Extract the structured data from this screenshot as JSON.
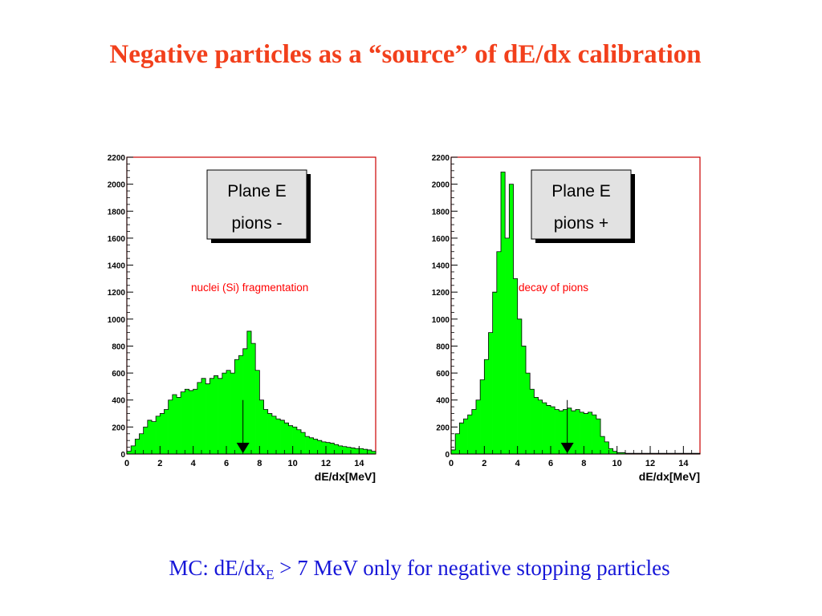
{
  "slide": {
    "title": "Negative particles as a  “source” of dE/dx calibration",
    "caption": {
      "prefix": "MC: dE/dx",
      "subscript": "E",
      "middle": " > ",
      "suffix": "7 MeV only for negative stopping particles"
    }
  },
  "colors": {
    "title": "#f2401c",
    "caption": "#1616d8",
    "fill": "#00ff00",
    "frame": "#cc0000",
    "annotation": "#ff0000"
  },
  "chart_data": [
    {
      "type": "bar",
      "title": "",
      "xlabel": "dE/dx[MeV]",
      "ylabel": "",
      "xlim": [
        0,
        15
      ],
      "ylim": [
        0,
        2200
      ],
      "xticks": [
        "0",
        "2",
        "4",
        "6",
        "8",
        "10",
        "12",
        "14"
      ],
      "yticks": [
        "0",
        "200",
        "400",
        "600",
        "800",
        "1000",
        "1200",
        "1400",
        "1600",
        "1800",
        "2000",
        "2200"
      ],
      "label_box": [
        "Plane E",
        "pions -"
      ],
      "annotation": "nuclei (Si) fragmentation",
      "cut_marker_x": 7.0,
      "bin_width": 0.25,
      "values": [
        20,
        60,
        110,
        150,
        200,
        250,
        240,
        280,
        300,
        330,
        400,
        440,
        420,
        460,
        480,
        470,
        480,
        530,
        560,
        520,
        560,
        580,
        560,
        600,
        620,
        600,
        700,
        730,
        780,
        910,
        820,
        620,
        400,
        330,
        300,
        280,
        260,
        250,
        230,
        210,
        200,
        180,
        160,
        130,
        120,
        110,
        100,
        90,
        85,
        80,
        70,
        60,
        55,
        50,
        45,
        40,
        40,
        35,
        30,
        20
      ]
    },
    {
      "type": "bar",
      "title": "",
      "xlabel": "dE/dx[MeV]",
      "ylabel": "",
      "xlim": [
        0,
        15
      ],
      "ylim": [
        0,
        2200
      ],
      "xticks": [
        "0",
        "2",
        "4",
        "6",
        "8",
        "10",
        "12",
        "14"
      ],
      "yticks": [
        "0",
        "200",
        "400",
        "600",
        "800",
        "1000",
        "1200",
        "1400",
        "1600",
        "1800",
        "2000",
        "2200"
      ],
      "label_box": [
        "Plane E",
        "pions +"
      ],
      "annotation": "decay of pions",
      "cut_marker_x": 7.0,
      "bin_width": 0.25,
      "values": [
        30,
        150,
        230,
        260,
        290,
        330,
        400,
        550,
        700,
        900,
        1200,
        1500,
        2090,
        1600,
        2000,
        1300,
        1000,
        800,
        600,
        480,
        420,
        400,
        380,
        360,
        350,
        330,
        320,
        330,
        340,
        320,
        330,
        310,
        300,
        310,
        290,
        260,
        130,
        90,
        40,
        20,
        10,
        10,
        5,
        5,
        5,
        5,
        5,
        5,
        5,
        5,
        5,
        5,
        5,
        5,
        5,
        5,
        5,
        5,
        5,
        5
      ]
    }
  ]
}
